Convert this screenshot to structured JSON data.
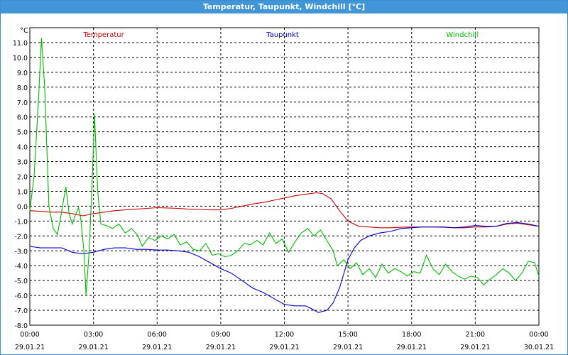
{
  "window": {
    "title": "Temperatur, Taupunkt, Windchill [°C]"
  },
  "colors": {
    "temperatur": "#cc0000",
    "taupunkt": "#0000cc",
    "windchill": "#00bb00",
    "titlebar": "#4196d8"
  },
  "chart_data": {
    "type": "line",
    "title": "Temperatur, Taupunkt, Windchill [°C]",
    "ylabel": "°C",
    "xlabel": "",
    "ylim": [
      -8.0,
      12.0
    ],
    "xlim": [
      0,
      24
    ],
    "grid": true,
    "legend_position": "top",
    "y_ticks": [
      "-8.0",
      "-7.0",
      "-6.0",
      "-5.0",
      "-4.0",
      "-3.0",
      "-2.0",
      "-1.0",
      "0.0",
      "1.0",
      "2.0",
      "3.0",
      "4.0",
      "5.0",
      "6.0",
      "7.0",
      "8.0",
      "9.0",
      "10.0",
      "11.0"
    ],
    "x_ticks": [
      {
        "x": 0,
        "time": "00:00",
        "date": "29.01.21"
      },
      {
        "x": 3,
        "time": "03:00",
        "date": "29.01.21"
      },
      {
        "x": 6,
        "time": "06:00",
        "date": "29.01.21"
      },
      {
        "x": 9,
        "time": "09:00",
        "date": "29.01.21"
      },
      {
        "x": 12,
        "time": "12:00",
        "date": "29.01.21"
      },
      {
        "x": 15,
        "time": "15:00",
        "date": "29.01.21"
      },
      {
        "x": 18,
        "time": "18:00",
        "date": "29.01.21"
      },
      {
        "x": 21,
        "time": "21:00",
        "date": "29.01.21"
      },
      {
        "x": 24,
        "time": "00:00",
        "date": "30.01.21"
      }
    ],
    "series": [
      {
        "name": "Temperatur",
        "color": "#cc0000",
        "points": [
          [
            0,
            -0.3
          ],
          [
            0.5,
            -0.35
          ],
          [
            1,
            -0.4
          ],
          [
            1.5,
            -0.4
          ],
          [
            2,
            -0.5
          ],
          [
            2.5,
            -0.65
          ],
          [
            3,
            -0.5
          ],
          [
            3.5,
            -0.4
          ],
          [
            4,
            -0.3
          ],
          [
            4.5,
            -0.25
          ],
          [
            5,
            -0.2
          ],
          [
            5.5,
            -0.15
          ],
          [
            6,
            -0.1
          ],
          [
            6.5,
            -0.12
          ],
          [
            7,
            -0.15
          ],
          [
            7.5,
            -0.2
          ],
          [
            8,
            -0.22
          ],
          [
            8.5,
            -0.25
          ],
          [
            9,
            -0.25
          ],
          [
            9.5,
            -0.15
          ],
          [
            10,
            0.0
          ],
          [
            10.5,
            0.15
          ],
          [
            11,
            0.25
          ],
          [
            11.5,
            0.4
          ],
          [
            12,
            0.55
          ],
          [
            12.5,
            0.7
          ],
          [
            13,
            0.8
          ],
          [
            13.5,
            0.9
          ],
          [
            13.8,
            0.85
          ],
          [
            14.2,
            0.5
          ],
          [
            14.6,
            -0.3
          ],
          [
            15,
            -1.0
          ],
          [
            15.5,
            -1.35
          ],
          [
            16,
            -1.4
          ],
          [
            16.5,
            -1.45
          ],
          [
            17,
            -1.45
          ],
          [
            17.5,
            -1.42
          ],
          [
            18,
            -1.4
          ],
          [
            18.5,
            -1.4
          ],
          [
            19,
            -1.4
          ],
          [
            19.5,
            -1.42
          ],
          [
            20,
            -1.45
          ],
          [
            20.5,
            -1.45
          ],
          [
            21,
            -1.4
          ],
          [
            21.5,
            -1.4
          ],
          [
            22,
            -1.35
          ],
          [
            22.5,
            -1.2
          ],
          [
            23,
            -1.15
          ],
          [
            23.5,
            -1.25
          ],
          [
            24,
            -1.35
          ]
        ]
      },
      {
        "name": "Taupunkt",
        "color": "#0000cc",
        "points": [
          [
            0,
            -2.7
          ],
          [
            0.5,
            -2.8
          ],
          [
            1,
            -2.8
          ],
          [
            1.5,
            -2.8
          ],
          [
            2,
            -3.1
          ],
          [
            2.5,
            -3.2
          ],
          [
            3,
            -3.1
          ],
          [
            3.5,
            -2.9
          ],
          [
            4,
            -2.8
          ],
          [
            4.5,
            -2.8
          ],
          [
            5,
            -2.9
          ],
          [
            5.5,
            -2.9
          ],
          [
            6,
            -2.95
          ],
          [
            6.5,
            -2.95
          ],
          [
            7,
            -3.0
          ],
          [
            7.5,
            -3.1
          ],
          [
            8,
            -3.4
          ],
          [
            8.5,
            -3.8
          ],
          [
            9,
            -4.2
          ],
          [
            9.5,
            -4.5
          ],
          [
            10,
            -5.0
          ],
          [
            10.5,
            -5.5
          ],
          [
            11,
            -5.8
          ],
          [
            11.5,
            -6.2
          ],
          [
            12,
            -6.6
          ],
          [
            12.5,
            -6.7
          ],
          [
            13,
            -6.7
          ],
          [
            13.3,
            -6.9
          ],
          [
            13.6,
            -7.15
          ],
          [
            14,
            -7.0
          ],
          [
            14.3,
            -6.5
          ],
          [
            14.6,
            -5.5
          ],
          [
            15,
            -3.6
          ],
          [
            15.3,
            -2.8
          ],
          [
            15.6,
            -2.3
          ],
          [
            16,
            -2.0
          ],
          [
            16.5,
            -1.8
          ],
          [
            17,
            -1.7
          ],
          [
            17.5,
            -1.5
          ],
          [
            18,
            -1.45
          ],
          [
            18.5,
            -1.4
          ],
          [
            19,
            -1.4
          ],
          [
            19.5,
            -1.4
          ],
          [
            20,
            -1.45
          ],
          [
            20.5,
            -1.4
          ],
          [
            21,
            -1.3
          ],
          [
            21.5,
            -1.35
          ],
          [
            22,
            -1.35
          ],
          [
            22.5,
            -1.15
          ],
          [
            23,
            -1.1
          ],
          [
            23.5,
            -1.2
          ],
          [
            24,
            -1.35
          ]
        ]
      },
      {
        "name": "Windchill",
        "color": "#00bb00",
        "points": [
          [
            0,
            -0.3
          ],
          [
            0.2,
            2.0
          ],
          [
            0.4,
            7.0
          ],
          [
            0.55,
            11.3
          ],
          [
            0.7,
            8.0
          ],
          [
            0.9,
            0.0
          ],
          [
            1.1,
            -1.5
          ],
          [
            1.3,
            -1.9
          ],
          [
            1.45,
            -0.8
          ],
          [
            1.6,
            0.5
          ],
          [
            1.7,
            1.3
          ],
          [
            1.85,
            -0.5
          ],
          [
            2.0,
            -1.2
          ],
          [
            2.15,
            -0.6
          ],
          [
            2.3,
            -0.1
          ],
          [
            2.4,
            -0.8
          ],
          [
            2.55,
            -3.0
          ],
          [
            2.65,
            -6.0
          ],
          [
            2.8,
            -3.0
          ],
          [
            2.95,
            2.0
          ],
          [
            3.05,
            6.2
          ],
          [
            3.2,
            1.0
          ],
          [
            3.35,
            -1.2
          ],
          [
            3.6,
            -1.3
          ],
          [
            3.9,
            -1.5
          ],
          [
            4.2,
            -1.2
          ],
          [
            4.5,
            -1.8
          ],
          [
            4.8,
            -1.5
          ],
          [
            5.1,
            -2.0
          ],
          [
            5.3,
            -2.7
          ],
          [
            5.6,
            -2.1
          ],
          [
            5.9,
            -2.3
          ],
          [
            6.2,
            -2.0
          ],
          [
            6.5,
            -2.2
          ],
          [
            6.8,
            -1.9
          ],
          [
            7.1,
            -2.6
          ],
          [
            7.4,
            -2.4
          ],
          [
            7.7,
            -2.9
          ],
          [
            8.0,
            -3.0
          ],
          [
            8.3,
            -2.5
          ],
          [
            8.6,
            -3.3
          ],
          [
            8.9,
            -3.2
          ],
          [
            9.2,
            -3.4
          ],
          [
            9.5,
            -3.3
          ],
          [
            9.8,
            -3.0
          ],
          [
            10.1,
            -2.5
          ],
          [
            10.4,
            -2.6
          ],
          [
            10.7,
            -2.3
          ],
          [
            11.0,
            -2.6
          ],
          [
            11.3,
            -1.8
          ],
          [
            11.6,
            -2.5
          ],
          [
            11.9,
            -2.2
          ],
          [
            12.2,
            -3.1
          ],
          [
            12.5,
            -2.4
          ],
          [
            12.8,
            -1.8
          ],
          [
            13.1,
            -1.5
          ],
          [
            13.4,
            -2.0
          ],
          [
            13.7,
            -1.6
          ],
          [
            14.0,
            -2.3
          ],
          [
            14.3,
            -3.0
          ],
          [
            14.5,
            -4.0
          ],
          [
            14.8,
            -3.6
          ],
          [
            15.1,
            -4.2
          ],
          [
            15.4,
            -3.8
          ],
          [
            15.7,
            -4.6
          ],
          [
            16.0,
            -4.2
          ],
          [
            16.3,
            -4.8
          ],
          [
            16.6,
            -3.9
          ],
          [
            16.9,
            -4.5
          ],
          [
            17.2,
            -4.2
          ],
          [
            17.5,
            -4.4
          ],
          [
            17.8,
            -4.7
          ],
          [
            18.1,
            -4.4
          ],
          [
            18.4,
            -4.5
          ],
          [
            18.7,
            -3.3
          ],
          [
            19.0,
            -4.2
          ],
          [
            19.3,
            -4.6
          ],
          [
            19.6,
            -3.9
          ],
          [
            19.9,
            -4.4
          ],
          [
            20.2,
            -4.7
          ],
          [
            20.5,
            -4.9
          ],
          [
            20.8,
            -4.7
          ],
          [
            21.1,
            -4.8
          ],
          [
            21.4,
            -5.3
          ],
          [
            21.7,
            -4.9
          ],
          [
            22.0,
            -4.6
          ],
          [
            22.3,
            -4.2
          ],
          [
            22.6,
            -4.5
          ],
          [
            22.9,
            -5.0
          ],
          [
            23.2,
            -4.5
          ],
          [
            23.5,
            -3.7
          ],
          [
            23.8,
            -3.8
          ],
          [
            24,
            -4.7
          ]
        ]
      }
    ]
  }
}
